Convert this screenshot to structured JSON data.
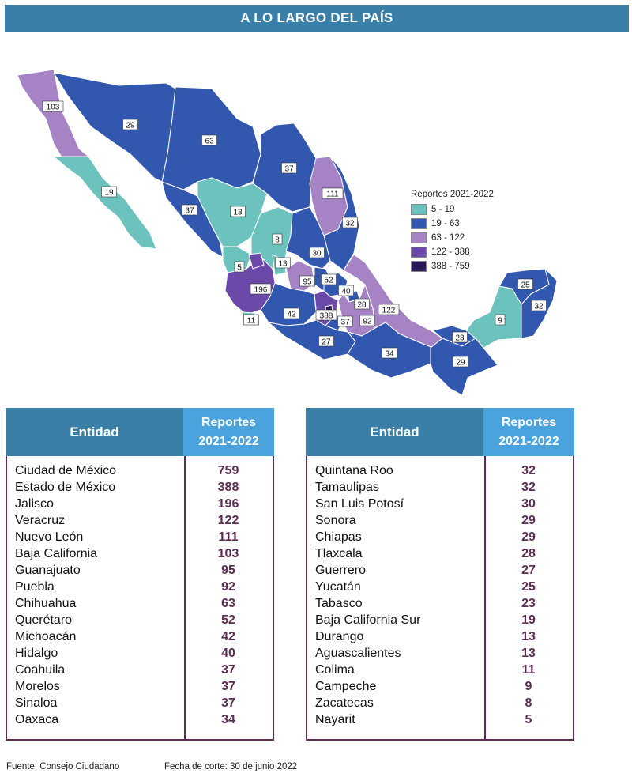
{
  "header": {
    "title": "A LO LARGO DEL PAÍS"
  },
  "legend": {
    "title": "Reportes 2021-2022",
    "items": [
      {
        "label": "5 - 19",
        "color": "#6cc3bd"
      },
      {
        "label": "19 - 63",
        "color": "#3157ae"
      },
      {
        "label": "63 - 122",
        "color": "#a583c4"
      },
      {
        "label": "122 - 388",
        "color": "#6a49a8"
      },
      {
        "label": "388 - 759",
        "color": "#2a1757"
      }
    ]
  },
  "map_labels": [
    {
      "state": "Baja California",
      "value": "103",
      "cls": "c3"
    },
    {
      "state": "Sonora",
      "value": "29",
      "cls": "c2"
    },
    {
      "state": "Chihuahua",
      "value": "63",
      "cls": "c2"
    },
    {
      "state": "Coahuila",
      "value": "37",
      "cls": "c2"
    },
    {
      "state": "Nuevo León",
      "value": "111",
      "cls": "c3"
    },
    {
      "state": "Tamaulipas",
      "value": "32",
      "cls": "c2"
    },
    {
      "state": "Baja California Sur",
      "value": "19",
      "cls": "c1"
    },
    {
      "state": "Sinaloa",
      "value": "37",
      "cls": "c2"
    },
    {
      "state": "Durango",
      "value": "13",
      "cls": "c1"
    },
    {
      "state": "Zacatecas",
      "value": "8",
      "cls": "c1"
    },
    {
      "state": "San Luis Potosí",
      "value": "30",
      "cls": "c2"
    },
    {
      "state": "Nayarit",
      "value": "5",
      "cls": "c1"
    },
    {
      "state": "Aguascalientes",
      "value": "13",
      "cls": "c1"
    },
    {
      "state": "Guanajuato",
      "value": "95",
      "cls": "c3"
    },
    {
      "state": "Querétaro",
      "value": "52",
      "cls": "c2"
    },
    {
      "state": "Hidalgo",
      "value": "40",
      "cls": "c2"
    },
    {
      "state": "Jalisco",
      "value": "196",
      "cls": "c4"
    },
    {
      "state": "Colima",
      "value": "11",
      "cls": "c1"
    },
    {
      "state": "Michoacán",
      "value": "42",
      "cls": "c2"
    },
    {
      "state": "Estado de México",
      "value": "388",
      "cls": "c4"
    },
    {
      "state": "Morelos",
      "value": "37",
      "cls": "c2"
    },
    {
      "state": "Tlaxcala",
      "value": "28",
      "cls": "c2"
    },
    {
      "state": "Puebla",
      "value": "92",
      "cls": "c3"
    },
    {
      "state": "Veracruz",
      "value": "122",
      "cls": "c3"
    },
    {
      "state": "Guerrero",
      "value": "27",
      "cls": "c2"
    },
    {
      "state": "Oaxaca",
      "value": "34",
      "cls": "c2"
    },
    {
      "state": "Tabasco",
      "value": "23",
      "cls": "c2"
    },
    {
      "state": "Chiapas",
      "value": "29",
      "cls": "c2"
    },
    {
      "state": "Campeche",
      "value": "9",
      "cls": "c1"
    },
    {
      "state": "Yucatán",
      "value": "25",
      "cls": "c2"
    },
    {
      "state": "Quintana Roo",
      "value": "32",
      "cls": "c2"
    }
  ],
  "table_headers": {
    "entity": "Entidad",
    "reports_line1": "Reportes",
    "reports_line2": "2021-2022"
  },
  "table_left": [
    {
      "name": "Ciudad de México",
      "value": "759"
    },
    {
      "name": "Estado de México",
      "value": "388"
    },
    {
      "name": "Jalisco",
      "value": "196"
    },
    {
      "name": "Veracruz",
      "value": "122"
    },
    {
      "name": "Nuevo León",
      "value": "111"
    },
    {
      "name": "Baja California",
      "value": "103"
    },
    {
      "name": "Guanajuato",
      "value": "95"
    },
    {
      "name": "Puebla",
      "value": "92"
    },
    {
      "name": "Chihuahua",
      "value": "63"
    },
    {
      "name": "Querétaro",
      "value": "52"
    },
    {
      "name": "Michoacán",
      "value": "42"
    },
    {
      "name": "Hidalgo",
      "value": "40"
    },
    {
      "name": "Coahuila",
      "value": "37"
    },
    {
      "name": "Morelos",
      "value": "37"
    },
    {
      "name": "Sinaloa",
      "value": "37"
    },
    {
      "name": "Oaxaca",
      "value": "34"
    }
  ],
  "table_right": [
    {
      "name": "Quintana Roo",
      "value": "32"
    },
    {
      "name": "Tamaulipas",
      "value": "32"
    },
    {
      "name": "San Luis Potosí",
      "value": "30"
    },
    {
      "name": "Sonora",
      "value": "29"
    },
    {
      "name": "Chiapas",
      "value": "29"
    },
    {
      "name": "Tlaxcala",
      "value": "28"
    },
    {
      "name": "Guerrero",
      "value": "27"
    },
    {
      "name": "Yucatán",
      "value": "25"
    },
    {
      "name": "Tabasco",
      "value": "23"
    },
    {
      "name": "Baja California Sur",
      "value": "19"
    },
    {
      "name": "Durango",
      "value": "13"
    },
    {
      "name": "Aguascalientes",
      "value": "13"
    },
    {
      "name": "Colima",
      "value": "11"
    },
    {
      "name": "Campeche",
      "value": "9"
    },
    {
      "name": "Zacatecas",
      "value": "8"
    },
    {
      "name": "Nayarit",
      "value": "5"
    }
  ],
  "footer": {
    "source": "Fuente: Consejo Ciudadano",
    "cutoff": "Fecha de corte: 30 de junio 2022"
  }
}
